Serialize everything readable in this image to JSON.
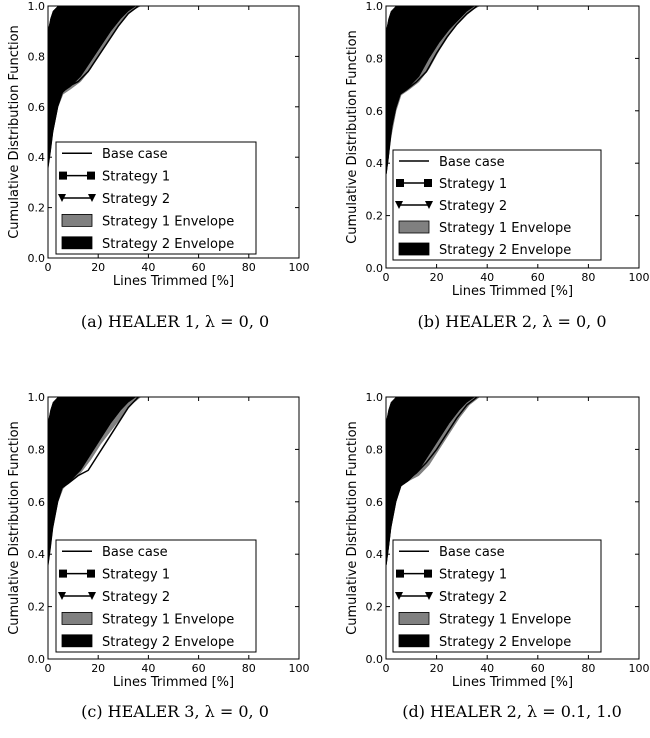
{
  "figure": {
    "shared_axes": {
      "xlabel": "Lines Trimmed [%]",
      "ylabel": "Cumulative Distribution Function",
      "xlim": [
        0,
        100
      ],
      "ylim": [
        0,
        1
      ],
      "xticks": [
        "0",
        "20",
        "40",
        "60",
        "80",
        "100"
      ],
      "yticks": [
        "0.0",
        "0.2",
        "0.4",
        "0.6",
        "0.8",
        "1.0"
      ]
    },
    "legend": [
      {
        "label": "Base case",
        "style": "line",
        "color": "#000000"
      },
      {
        "label": "Strategy 1",
        "style": "line-square",
        "color": "#000000"
      },
      {
        "label": "Strategy 2",
        "style": "line-triangle",
        "color": "#000000"
      },
      {
        "label": "Strategy 1 Envelope",
        "style": "patch",
        "color": "#808080"
      },
      {
        "label": "Strategy 2 Envelope",
        "style": "patch",
        "color": "#000000"
      }
    ]
  },
  "chart_data": [
    {
      "type": "area",
      "caption": "(a) HEALER 1, λ = 0, 0",
      "xlabel": "Lines Trimmed [%]",
      "ylabel": "Cumulative Distribution Function",
      "xlim": [
        0,
        100
      ],
      "ylim": [
        0,
        1
      ],
      "legend_position": "lower-left",
      "series": [
        {
          "name": "Base case",
          "x": [
            0,
            1,
            2,
            3,
            5,
            8,
            12,
            16,
            20,
            24,
            28,
            32,
            36
          ],
          "y": [
            0.38,
            0.45,
            0.52,
            0.58,
            0.65,
            0.68,
            0.7,
            0.74,
            0.8,
            0.86,
            0.92,
            0.97,
            1.0
          ]
        },
        {
          "name": "Strategy 1 Envelope",
          "x": [
            0,
            1,
            2,
            4,
            6,
            9,
            13,
            17,
            21,
            25,
            29,
            33,
            37
          ],
          "y_low": [
            0.36,
            0.42,
            0.5,
            0.6,
            0.65,
            0.67,
            0.7,
            0.75,
            0.82,
            0.88,
            0.93,
            0.98,
            1.0
          ],
          "y_high": [
            0.6,
            0.7,
            0.78,
            0.84,
            0.88,
            0.91,
            0.94,
            0.96,
            0.98,
            0.99,
            1.0,
            1.0,
            1.0
          ]
        },
        {
          "name": "Strategy 2 Envelope",
          "x": [
            0,
            1,
            2,
            4,
            6,
            9,
            13,
            17,
            21,
            25,
            29,
            32,
            35
          ],
          "y_low": [
            0.35,
            0.42,
            0.5,
            0.6,
            0.66,
            0.68,
            0.72,
            0.78,
            0.84,
            0.9,
            0.95,
            0.98,
            1.0
          ],
          "y_high": [
            0.9,
            0.95,
            0.98,
            1.0,
            1.0,
            1.0,
            1.0,
            1.0,
            1.0,
            1.0,
            1.0,
            1.0,
            1.0
          ]
        }
      ]
    },
    {
      "type": "area",
      "caption": "(b) HEALER 2, λ = 0, 0",
      "xlabel": "Lines Trimmed [%]",
      "ylabel": "Cumulative Distribution Function",
      "xlim": [
        0,
        100
      ],
      "ylim": [
        0,
        1
      ],
      "legend_position": "lower-left",
      "series": [
        {
          "name": "Base case",
          "x": [
            0,
            1,
            2,
            3,
            5,
            8,
            12,
            16,
            20,
            24,
            28,
            32,
            36
          ],
          "y": [
            0.36,
            0.44,
            0.52,
            0.6,
            0.66,
            0.68,
            0.71,
            0.75,
            0.82,
            0.88,
            0.93,
            0.97,
            1.0
          ]
        },
        {
          "name": "Strategy 1 Envelope",
          "x": [
            0,
            1,
            2,
            4,
            6,
            9,
            13,
            17,
            21,
            25,
            29,
            33,
            37
          ],
          "y_low": [
            0.36,
            0.42,
            0.5,
            0.6,
            0.66,
            0.68,
            0.71,
            0.76,
            0.83,
            0.89,
            0.94,
            0.98,
            1.0
          ],
          "y_high": [
            0.62,
            0.72,
            0.8,
            0.86,
            0.9,
            0.92,
            0.95,
            0.97,
            0.98,
            0.99,
            1.0,
            1.0,
            1.0
          ]
        },
        {
          "name": "Strategy 2 Envelope",
          "x": [
            0,
            1,
            2,
            4,
            6,
            9,
            13,
            17,
            21,
            25,
            29,
            32,
            35
          ],
          "y_low": [
            0.35,
            0.42,
            0.52,
            0.61,
            0.67,
            0.69,
            0.73,
            0.8,
            0.86,
            0.91,
            0.95,
            0.98,
            1.0
          ],
          "y_high": [
            0.9,
            0.95,
            0.98,
            1.0,
            1.0,
            1.0,
            1.0,
            1.0,
            1.0,
            1.0,
            1.0,
            1.0,
            1.0
          ]
        }
      ]
    },
    {
      "type": "area",
      "caption": "(c) HEALER 3, λ = 0, 0",
      "xlabel": "Lines Trimmed [%]",
      "ylabel": "Cumulative Distribution Function",
      "xlim": [
        0,
        100
      ],
      "ylim": [
        0,
        1
      ],
      "legend_position": "lower-left",
      "series": [
        {
          "name": "Base case",
          "x": [
            0,
            1,
            2,
            3,
            5,
            8,
            12,
            16,
            20,
            24,
            28,
            32,
            36
          ],
          "y": [
            0.37,
            0.45,
            0.53,
            0.6,
            0.65,
            0.67,
            0.7,
            0.72,
            0.78,
            0.84,
            0.9,
            0.96,
            1.0
          ]
        },
        {
          "name": "Strategy 1 Envelope",
          "x": [
            0,
            1,
            2,
            4,
            6,
            9,
            13,
            17,
            21,
            25,
            29,
            33,
            37
          ],
          "y_low": [
            0.36,
            0.43,
            0.51,
            0.6,
            0.65,
            0.68,
            0.71,
            0.76,
            0.82,
            0.87,
            0.92,
            0.97,
            1.0
          ],
          "y_high": [
            0.6,
            0.7,
            0.78,
            0.85,
            0.89,
            0.92,
            0.95,
            0.97,
            0.98,
            0.99,
            1.0,
            1.0,
            1.0
          ]
        },
        {
          "name": "Strategy 2 Envelope",
          "x": [
            0,
            1,
            2,
            4,
            6,
            9,
            13,
            17,
            21,
            25,
            29,
            32,
            35
          ],
          "y_low": [
            0.35,
            0.42,
            0.5,
            0.6,
            0.66,
            0.68,
            0.72,
            0.78,
            0.84,
            0.9,
            0.95,
            0.98,
            1.0
          ],
          "y_high": [
            0.9,
            0.95,
            0.98,
            1.0,
            1.0,
            1.0,
            1.0,
            1.0,
            1.0,
            1.0,
            1.0,
            1.0,
            1.0
          ]
        }
      ]
    },
    {
      "type": "area",
      "caption": "(d) HEALER 2, λ = 0.1, 1.0",
      "xlabel": "Lines Trimmed [%]",
      "ylabel": "Cumulative Distribution Function",
      "xlim": [
        0,
        100
      ],
      "ylim": [
        0,
        1
      ],
      "legend_position": "lower-left",
      "series": [
        {
          "name": "Base case",
          "x": [
            0,
            1,
            2,
            3,
            5,
            8,
            12,
            16,
            20,
            24,
            28,
            32,
            36
          ],
          "y": [
            0.36,
            0.44,
            0.52,
            0.6,
            0.66,
            0.68,
            0.71,
            0.75,
            0.8,
            0.86,
            0.92,
            0.97,
            1.0
          ]
        },
        {
          "name": "Strategy 1 Envelope",
          "x": [
            0,
            1,
            2,
            4,
            6,
            9,
            13,
            17,
            21,
            25,
            29,
            33,
            37
          ],
          "y_low": [
            0.36,
            0.42,
            0.5,
            0.6,
            0.66,
            0.68,
            0.7,
            0.74,
            0.8,
            0.86,
            0.92,
            0.97,
            1.0
          ],
          "y_high": [
            0.62,
            0.72,
            0.8,
            0.86,
            0.9,
            0.92,
            0.95,
            0.97,
            0.98,
            0.99,
            1.0,
            1.0,
            1.0
          ]
        },
        {
          "name": "Strategy 2 Envelope",
          "x": [
            0,
            1,
            2,
            4,
            6,
            9,
            13,
            17,
            21,
            25,
            29,
            32,
            35
          ],
          "y_low": [
            0.35,
            0.42,
            0.5,
            0.6,
            0.66,
            0.68,
            0.72,
            0.78,
            0.84,
            0.9,
            0.95,
            0.98,
            1.0
          ],
          "y_high": [
            0.9,
            0.95,
            0.98,
            1.0,
            1.0,
            1.0,
            1.0,
            1.0,
            1.0,
            1.0,
            1.0,
            1.0,
            1.0
          ]
        }
      ]
    }
  ]
}
